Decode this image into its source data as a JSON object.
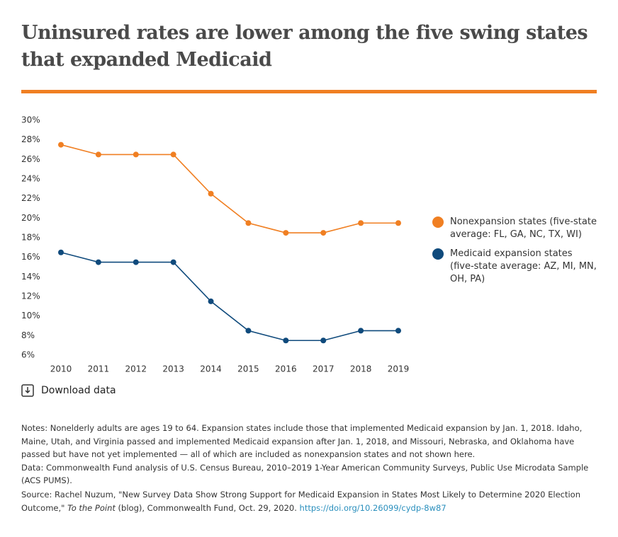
{
  "chart_data": {
    "type": "line",
    "title": "Uninsured rates are lower among the five swing states that expanded Medicaid",
    "x": [
      2010,
      2011,
      2012,
      2013,
      2014,
      2015,
      2016,
      2017,
      2018,
      2019
    ],
    "series": [
      {
        "name": "Nonexpansion states (five-state average: FL, GA, NC, TX, WI)",
        "color": "#f07f22",
        "values": [
          27.5,
          26.5,
          26.5,
          26.5,
          22.5,
          19.5,
          18.5,
          18.5,
          19.5,
          19.5
        ]
      },
      {
        "name": "Medicaid expansion states (five-state average: AZ, MI, MN, OH, PA)",
        "color": "#0f4a7c",
        "values": [
          16.5,
          15.5,
          15.5,
          15.5,
          11.5,
          8.5,
          7.5,
          7.5,
          8.5,
          8.5
        ]
      }
    ],
    "xlim": [
      2010,
      2019
    ],
    "xticks": [
      2010,
      2011,
      2012,
      2013,
      2014,
      2015,
      2016,
      2017,
      2018,
      2019
    ],
    "ylim": [
      6,
      30
    ],
    "yticks": [
      {
        "value": 6,
        "label": "6%"
      },
      {
        "value": 8,
        "label": "8%"
      },
      {
        "value": 10,
        "label": "10%"
      },
      {
        "value": 12,
        "label": "12%"
      },
      {
        "value": 14,
        "label": "14%"
      },
      {
        "value": 16,
        "label": "16%"
      },
      {
        "value": 18,
        "label": "18%"
      },
      {
        "value": 20,
        "label": "20%"
      },
      {
        "value": 22,
        "label": "22%"
      },
      {
        "value": 24,
        "label": "24%"
      },
      {
        "value": 26,
        "label": "26%"
      },
      {
        "value": 28,
        "label": "28%"
      },
      {
        "value": 30,
        "label": "30%"
      }
    ],
    "grid": false,
    "legend": "right"
  },
  "download": "Download data",
  "notes": "Notes: Nonelderly adults are ages 19 to 64. Expansion states include those that implemented Medicaid expansion by Jan. 1, 2018. Idaho, Maine, Utah, and Virginia passed and implemented Medicaid expansion after Jan. 1, 2018, and Missouri, Nebraska, and Oklahoma have passed but have not yet implemented — all of which are included as nonexpansion states and not shown here.",
  "data_note": "Data: Commonwealth Fund analysis of U.S. Census Bureau, 2010–2019 1-Year American Community Surveys, Public Use Microdata Sample (ACS PUMS).",
  "source": {
    "text": "Source:  Rachel Nuzum, \"New Survey Data Show Strong Support for Medicaid Expansion in States Most Likely to Determine 2020 Election Outcome,\" ",
    "italic": "To the Point",
    "after": " (blog), Commonwealth Fund, Oct. 29, 2020. ",
    "link": "https://doi.org/10.26099/cydp-8w87"
  }
}
